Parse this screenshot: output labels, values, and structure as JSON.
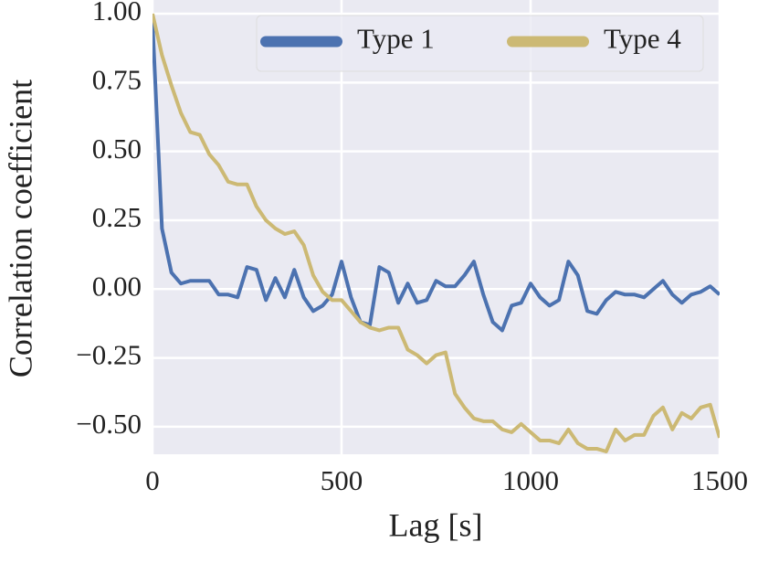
{
  "chart_data": {
    "type": "line",
    "xlabel": "Lag [s]",
    "ylabel": "Correlation coefficient",
    "x": [
      0,
      25,
      50,
      75,
      100,
      125,
      150,
      175,
      200,
      225,
      250,
      275,
      300,
      325,
      350,
      375,
      400,
      425,
      450,
      475,
      500,
      525,
      550,
      575,
      600,
      625,
      650,
      675,
      700,
      725,
      750,
      775,
      800,
      825,
      850,
      875,
      900,
      925,
      950,
      975,
      1000,
      1025,
      1050,
      1075,
      1100,
      1125,
      1150,
      1175,
      1200,
      1225,
      1250,
      1275,
      1300,
      1325,
      1350,
      1375,
      1400,
      1425,
      1450,
      1475,
      1500
    ],
    "series": [
      {
        "name": "Type 1",
        "color": "#4c72b0",
        "values": [
          0.97,
          0.22,
          0.06,
          0.02,
          0.03,
          0.03,
          0.03,
          -0.02,
          -0.02,
          -0.03,
          0.08,
          0.07,
          -0.04,
          0.04,
          -0.03,
          0.07,
          -0.03,
          -0.08,
          -0.06,
          -0.02,
          0.1,
          -0.03,
          -0.12,
          -0.13,
          0.08,
          0.06,
          -0.05,
          0.02,
          -0.05,
          -0.04,
          0.03,
          0.01,
          0.01,
          0.05,
          0.1,
          -0.02,
          -0.12,
          -0.15,
          -0.06,
          -0.05,
          0.02,
          -0.03,
          -0.06,
          -0.04,
          0.1,
          0.05,
          -0.08,
          -0.09,
          -0.04,
          -0.01,
          -0.02,
          -0.02,
          -0.03,
          0.0,
          0.03,
          -0.02,
          -0.05,
          -0.02,
          -0.01,
          0.01,
          -0.02
        ]
      },
      {
        "name": "Type 4",
        "color": "#ccb974",
        "values": [
          1.0,
          0.85,
          0.74,
          0.64,
          0.57,
          0.56,
          0.49,
          0.45,
          0.39,
          0.38,
          0.38,
          0.3,
          0.25,
          0.22,
          0.2,
          0.21,
          0.16,
          0.05,
          -0.01,
          -0.04,
          -0.04,
          -0.08,
          -0.12,
          -0.14,
          -0.15,
          -0.14,
          -0.14,
          -0.22,
          -0.24,
          -0.27,
          -0.24,
          -0.23,
          -0.38,
          -0.43,
          -0.47,
          -0.48,
          -0.48,
          -0.51,
          -0.52,
          -0.49,
          -0.52,
          -0.55,
          -0.55,
          -0.56,
          -0.51,
          -0.56,
          -0.58,
          -0.58,
          -0.59,
          -0.51,
          -0.55,
          -0.53,
          -0.53,
          -0.46,
          -0.43,
          -0.51,
          -0.45,
          -0.47,
          -0.43,
          -0.42,
          -0.54
        ]
      }
    ],
    "xlim": [
      0,
      1500
    ],
    "xticks": [
      0,
      500,
      1000,
      1500
    ],
    "ylim": [
      -0.6,
      1.05
    ],
    "yticks": [
      {
        "value": -0.5,
        "label": "−0.50"
      },
      {
        "value": -0.25,
        "label": "−0.25"
      },
      {
        "value": 0,
        "label": "0.00"
      },
      {
        "value": 0.25,
        "label": "0.25"
      },
      {
        "value": 0.5,
        "label": "0.50"
      },
      {
        "value": 0.75,
        "label": "0.75"
      },
      {
        "value": 1,
        "label": "1.00"
      }
    ],
    "grid": true,
    "legend": "upper right",
    "background": "#eaeaf2"
  }
}
